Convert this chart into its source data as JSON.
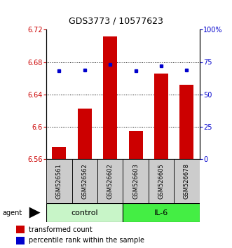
{
  "title": "GDS3773 / 10577623",
  "samples": [
    "GSM526561",
    "GSM526562",
    "GSM526602",
    "GSM526603",
    "GSM526605",
    "GSM526678"
  ],
  "bar_values": [
    6.574,
    6.622,
    6.712,
    6.594,
    6.666,
    6.652
  ],
  "percentile_values": [
    68,
    69,
    73,
    68,
    72,
    69
  ],
  "ylim_left": [
    6.56,
    6.72
  ],
  "ylim_right": [
    0,
    100
  ],
  "yticks_left": [
    6.56,
    6.6,
    6.64,
    6.68,
    6.72
  ],
  "ytick_labels_left": [
    "6.56",
    "6.6",
    "6.64",
    "6.68",
    "6.72"
  ],
  "yticks_right": [
    0,
    25,
    50,
    75,
    100
  ],
  "ytick_labels_right": [
    "0",
    "25",
    "50",
    "75",
    "100%"
  ],
  "bar_color": "#cc0000",
  "dot_color": "#0000cc",
  "bar_width": 0.55,
  "bar_bottom": 6.56,
  "agent_label": "agent",
  "legend_items": [
    {
      "color": "#cc0000",
      "label": "transformed count"
    },
    {
      "color": "#0000cc",
      "label": "percentile rank within the sample"
    }
  ],
  "bg_color": "white",
  "sample_box_color": "#cccccc",
  "group_configs": [
    {
      "indices": [
        0,
        1,
        2
      ],
      "label": "control",
      "color": "#c8f5c8"
    },
    {
      "indices": [
        3,
        4,
        5
      ],
      "label": "IL-6",
      "color": "#44ee44"
    }
  ],
  "grid_yticks": [
    6.6,
    6.64,
    6.68
  ],
  "title_fontsize": 9,
  "tick_fontsize": 7,
  "sample_fontsize": 6,
  "group_fontsize": 8,
  "legend_fontsize": 7
}
